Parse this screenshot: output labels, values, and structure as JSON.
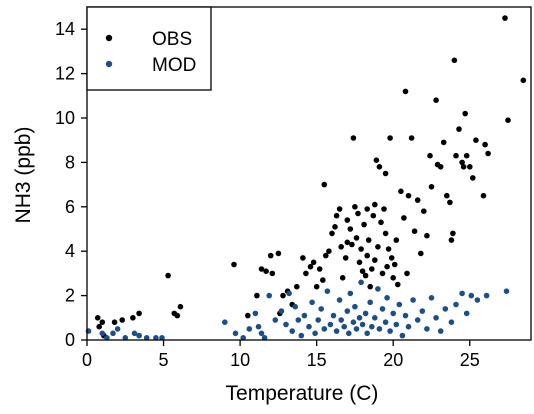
{
  "chart_data": {
    "type": "scatter",
    "title": "",
    "xlabel": "Temperature (C)",
    "ylabel": "NH3 (ppb)",
    "xlim": [
      0,
      29
    ],
    "ylim": [
      0,
      15
    ],
    "xticks": [
      0,
      5,
      10,
      15,
      20,
      25
    ],
    "yticks": [
      0,
      2,
      4,
      6,
      8,
      10,
      12,
      14
    ],
    "xtick_labels": [
      "0",
      "5",
      "10",
      "15",
      "20",
      "25"
    ],
    "ytick_labels": [
      "0",
      "2",
      "4",
      "6",
      "8",
      "10",
      "12",
      "14"
    ],
    "grid": false,
    "legend_position": "top-left",
    "series": [
      {
        "name": "OBS",
        "color": "#000000",
        "points": [
          [
            0.7,
            1.0
          ],
          [
            1.0,
            0.8
          ],
          [
            0.8,
            0.6
          ],
          [
            1.1,
            0.2
          ],
          [
            1.8,
            0.8
          ],
          [
            2.3,
            0.9
          ],
          [
            3.0,
            1.0
          ],
          [
            3.4,
            1.2
          ],
          [
            5.3,
            2.9
          ],
          [
            5.7,
            1.2
          ],
          [
            5.9,
            1.1
          ],
          [
            6.1,
            1.5
          ],
          [
            9.6,
            3.4
          ],
          [
            10.5,
            1.1
          ],
          [
            11.1,
            2.0
          ],
          [
            11.4,
            3.2
          ],
          [
            11.7,
            3.1
          ],
          [
            12.1,
            3.0
          ],
          [
            12.0,
            3.8
          ],
          [
            12.5,
            3.9
          ],
          [
            12.6,
            1.2
          ],
          [
            12.8,
            2.0
          ],
          [
            13.1,
            2.2
          ],
          [
            13.4,
            1.6
          ],
          [
            13.7,
            2.4
          ],
          [
            14.1,
            3.7
          ],
          [
            14.3,
            3.0
          ],
          [
            14.6,
            3.3
          ],
          [
            14.8,
            3.5
          ],
          [
            15.0,
            2.4
          ],
          [
            15.2,
            3.2
          ],
          [
            15.4,
            2.7
          ],
          [
            15.6,
            3.8
          ],
          [
            15.8,
            4.0
          ],
          [
            15.5,
            7.0
          ],
          [
            16.0,
            4.8
          ],
          [
            16.2,
            5.1
          ],
          [
            16.3,
            5.6
          ],
          [
            16.5,
            5.9
          ],
          [
            16.6,
            4.2
          ],
          [
            16.7,
            2.8
          ],
          [
            16.9,
            3.7
          ],
          [
            17.0,
            4.4
          ],
          [
            17.0,
            5.4
          ],
          [
            17.2,
            5.0
          ],
          [
            17.3,
            4.3
          ],
          [
            17.4,
            9.1
          ],
          [
            17.5,
            6.0
          ],
          [
            17.6,
            4.6
          ],
          [
            17.7,
            5.7
          ],
          [
            17.8,
            3.5
          ],
          [
            17.9,
            4.1
          ],
          [
            18.0,
            3.1
          ],
          [
            18.1,
            5.2
          ],
          [
            18.2,
            2.9
          ],
          [
            18.3,
            3.8
          ],
          [
            18.3,
            5.9
          ],
          [
            18.4,
            4.5
          ],
          [
            18.5,
            2.4
          ],
          [
            18.6,
            3.2
          ],
          [
            18.7,
            5.6
          ],
          [
            18.8,
            6.1
          ],
          [
            18.8,
            3.6
          ],
          [
            18.9,
            8.1
          ],
          [
            19.0,
            4.2
          ],
          [
            19.1,
            7.8
          ],
          [
            19.2,
            5.3
          ],
          [
            19.3,
            3.0
          ],
          [
            19.4,
            5.9
          ],
          [
            19.5,
            4.8
          ],
          [
            19.5,
            7.5
          ],
          [
            19.6,
            3.3
          ],
          [
            19.7,
            4.1
          ],
          [
            19.8,
            9.1
          ],
          [
            19.9,
            3.7
          ],
          [
            20.0,
            2.8
          ],
          [
            20.1,
            3.4
          ],
          [
            20.2,
            4.5
          ],
          [
            20.3,
            2.5
          ],
          [
            20.5,
            6.7
          ],
          [
            20.7,
            5.5
          ],
          [
            20.8,
            11.2
          ],
          [
            20.9,
            3.0
          ],
          [
            21.0,
            6.5
          ],
          [
            21.2,
            9.1
          ],
          [
            21.4,
            4.9
          ],
          [
            21.6,
            6.3
          ],
          [
            21.8,
            3.9
          ],
          [
            22.0,
            5.8
          ],
          [
            22.2,
            4.7
          ],
          [
            22.4,
            8.3
          ],
          [
            22.5,
            6.9
          ],
          [
            22.8,
            10.8
          ],
          [
            22.9,
            7.9
          ],
          [
            23.1,
            7.8
          ],
          [
            23.3,
            8.9
          ],
          [
            23.5,
            6.5
          ],
          [
            23.7,
            6.2
          ],
          [
            23.8,
            4.5
          ],
          [
            23.9,
            4.8
          ],
          [
            24.0,
            12.6
          ],
          [
            24.1,
            8.3
          ],
          [
            24.3,
            9.5
          ],
          [
            24.5,
            8.0
          ],
          [
            24.6,
            7.8
          ],
          [
            24.7,
            10.2
          ],
          [
            24.8,
            8.3
          ],
          [
            25.0,
            7.8
          ],
          [
            25.2,
            7.3
          ],
          [
            25.4,
            9.0
          ],
          [
            25.9,
            6.5
          ],
          [
            26.0,
            8.8
          ],
          [
            26.2,
            8.4
          ],
          [
            27.3,
            14.5
          ],
          [
            27.5,
            9.9
          ],
          [
            28.5,
            11.7
          ]
        ]
      },
      {
        "name": "MOD",
        "color": "#1c4e8a",
        "points": [
          [
            0.1,
            0.4
          ],
          [
            1.0,
            0.3
          ],
          [
            1.3,
            0.1
          ],
          [
            1.7,
            0.3
          ],
          [
            2.0,
            0.5
          ],
          [
            2.5,
            0.1
          ],
          [
            3.1,
            0.3
          ],
          [
            3.4,
            0.2
          ],
          [
            3.9,
            0.1
          ],
          [
            4.5,
            0.1
          ],
          [
            4.9,
            0.1
          ],
          [
            9.0,
            0.8
          ],
          [
            9.7,
            0.3
          ],
          [
            10.2,
            0.1
          ],
          [
            10.6,
            0.5
          ],
          [
            11.0,
            1.2
          ],
          [
            11.2,
            0.6
          ],
          [
            11.4,
            0.3
          ],
          [
            11.6,
            0.1
          ],
          [
            11.9,
            2.0
          ],
          [
            12.3,
            0.9
          ],
          [
            12.7,
            1.3
          ],
          [
            13.0,
            0.7
          ],
          [
            13.2,
            2.1
          ],
          [
            13.4,
            0.4
          ],
          [
            13.6,
            1.5
          ],
          [
            13.8,
            0.9
          ],
          [
            14.0,
            0.2
          ],
          [
            14.2,
            1.1
          ],
          [
            14.5,
            0.6
          ],
          [
            14.7,
            1.7
          ],
          [
            14.9,
            0.3
          ],
          [
            15.1,
            0.9
          ],
          [
            15.3,
            1.4
          ],
          [
            15.5,
            0.5
          ],
          [
            15.7,
            2.2
          ],
          [
            15.9,
            0.7
          ],
          [
            16.1,
            1.1
          ],
          [
            16.3,
            0.4
          ],
          [
            16.5,
            1.8
          ],
          [
            16.6,
            0.9
          ],
          [
            16.8,
            0.6
          ],
          [
            17.0,
            1.3
          ],
          [
            17.1,
            0.3
          ],
          [
            17.2,
            2.1
          ],
          [
            17.4,
            0.8
          ],
          [
            17.5,
            1.5
          ],
          [
            17.6,
            0.5
          ],
          [
            17.8,
            1.0
          ],
          [
            17.9,
            2.6
          ],
          [
            18.0,
            0.7
          ],
          [
            18.2,
            1.2
          ],
          [
            18.3,
            0.3
          ],
          [
            18.5,
            1.7
          ],
          [
            18.6,
            0.6
          ],
          [
            18.8,
            1.0
          ],
          [
            19.0,
            2.3
          ],
          [
            19.1,
            0.5
          ],
          [
            19.3,
            1.4
          ],
          [
            19.5,
            0.8
          ],
          [
            19.6,
            1.9
          ],
          [
            19.8,
            0.4
          ],
          [
            20.0,
            1.2
          ],
          [
            20.2,
            0.7
          ],
          [
            20.4,
            1.6
          ],
          [
            20.6,
            0.2
          ],
          [
            20.8,
            1.1
          ],
          [
            21.0,
            0.6
          ],
          [
            21.3,
            1.8
          ],
          [
            21.6,
            0.9
          ],
          [
            21.9,
            1.3
          ],
          [
            22.2,
            0.5
          ],
          [
            22.5,
            1.9
          ],
          [
            22.8,
            1.0
          ],
          [
            23.1,
            0.4
          ],
          [
            23.4,
            1.4
          ],
          [
            23.8,
            0.8
          ],
          [
            24.1,
            1.6
          ],
          [
            24.5,
            2.1
          ],
          [
            24.8,
            1.2
          ],
          [
            25.1,
            2.0
          ],
          [
            25.5,
            1.8
          ],
          [
            26.1,
            2.0
          ],
          [
            27.4,
            2.2
          ]
        ]
      }
    ]
  }
}
